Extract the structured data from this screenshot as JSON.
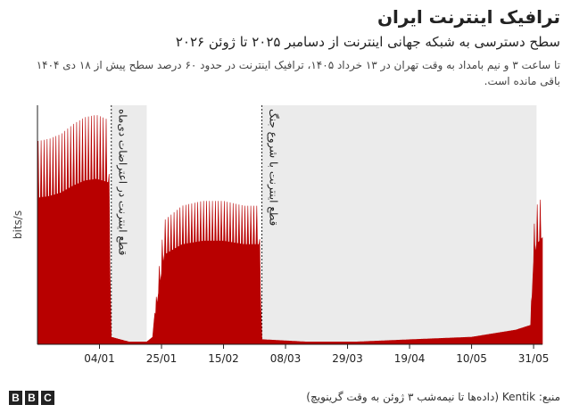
{
  "header": {
    "title": "ترافیک اینترنت ایران",
    "subtitle": "سطح دسترسی به شبکه جهانی اینترنت از دسامبر ۲۰۲۵ تا ژوئن ۲۰۲۶",
    "description": "تا ساعت ۳ و نیم بامداد به وقت تهران در ۱۳ خرداد ۱۴۰۵، ترافیک اینترنت در حدود ۶۰ درصد سطح پیش از ۱۸ دی ۱۴۰۴ باقی مانده است."
  },
  "footer": {
    "source": "منبع: Kentik (داده‌ها تا نیمه‌شب ۳ ژوئن به وقت گرینویچ)",
    "logo_letters": [
      "B",
      "B",
      "C"
    ]
  },
  "chart_data": {
    "type": "area",
    "ylabel": "bits/s",
    "xlabel": "",
    "x_range": [
      "2025-12-14",
      "2026-06-03"
    ],
    "ylim": [
      0,
      100
    ],
    "x_ticks": [
      {
        "date": "2026-01-04",
        "label": "04/01"
      },
      {
        "date": "2026-01-25",
        "label": "25/01"
      },
      {
        "date": "2026-02-15",
        "label": "15/02"
      },
      {
        "date": "2026-03-08",
        "label": "08/03"
      },
      {
        "date": "2026-03-29",
        "label": "29/03"
      },
      {
        "date": "2026-04-19",
        "label": "19/04"
      },
      {
        "date": "2026-05-10",
        "label": "10/05"
      },
      {
        "date": "2026-05-31",
        "label": "31/05"
      }
    ],
    "shaded_periods": [
      {
        "start": "2026-01-08",
        "end": "2026-01-20",
        "label": "قطع اینترنت در اعتراضات دی‌ماه"
      },
      {
        "start": "2026-02-28",
        "end": "2026-06-01",
        "label": "قطع اینترنت با شروع جنگ"
      }
    ],
    "series": [
      {
        "color": "#b80000",
        "points": [
          [
            "2025-12-14",
            85
          ],
          [
            "2025-12-18",
            86
          ],
          [
            "2025-12-22",
            88
          ],
          [
            "2025-12-26",
            92
          ],
          [
            "2025-12-30",
            95
          ],
          [
            "2026-01-03",
            96
          ],
          [
            "2026-01-07",
            94
          ],
          [
            "2026-01-08",
            3
          ],
          [
            "2026-01-14",
            1
          ],
          [
            "2026-01-20",
            1
          ],
          [
            "2026-01-22",
            3
          ],
          [
            "2026-01-24",
            30
          ],
          [
            "2026-01-26",
            52
          ],
          [
            "2026-02-01",
            58
          ],
          [
            "2026-02-08",
            60
          ],
          [
            "2026-02-15",
            60
          ],
          [
            "2026-02-22",
            58
          ],
          [
            "2026-02-27",
            58
          ],
          [
            "2026-02-28",
            2
          ],
          [
            "2026-03-15",
            1
          ],
          [
            "2026-04-01",
            1
          ],
          [
            "2026-04-20",
            2
          ],
          [
            "2026-05-10",
            3
          ],
          [
            "2026-05-25",
            6
          ],
          [
            "2026-05-30",
            8
          ],
          [
            "2026-05-31",
            48
          ],
          [
            "2026-06-01",
            58
          ],
          [
            "2026-06-03",
            62
          ]
        ]
      }
    ]
  }
}
